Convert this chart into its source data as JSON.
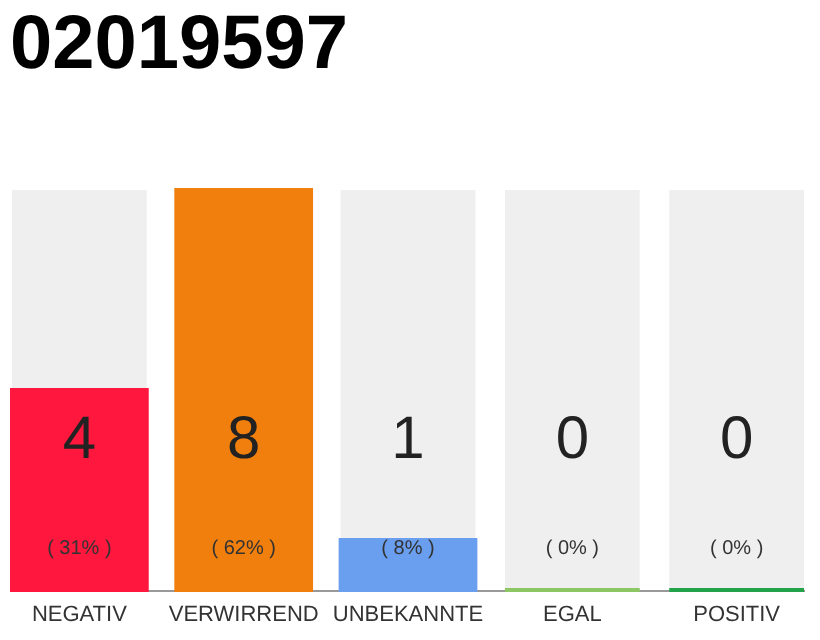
{
  "chart_data": {
    "type": "bar",
    "title": "02019597",
    "categories": [
      "NEGATIV",
      "VERWIRREND",
      "UNBEKANNTE",
      "EGAL",
      "POSITIV"
    ],
    "values": [
      4,
      8,
      1,
      0,
      0
    ],
    "colors": [
      "#ff173d",
      "#f07f0e",
      "#6a9ff0",
      "#8cc665",
      "#22a34a"
    ],
    "ylim": [
      0,
      8
    ],
    "tick_labels": "x",
    "grid": false,
    "data_labels": true,
    "annotations": [
      "( 31% )",
      "( 62% )",
      "( 8% )",
      "( 0% )",
      "( 0% )"
    ]
  }
}
